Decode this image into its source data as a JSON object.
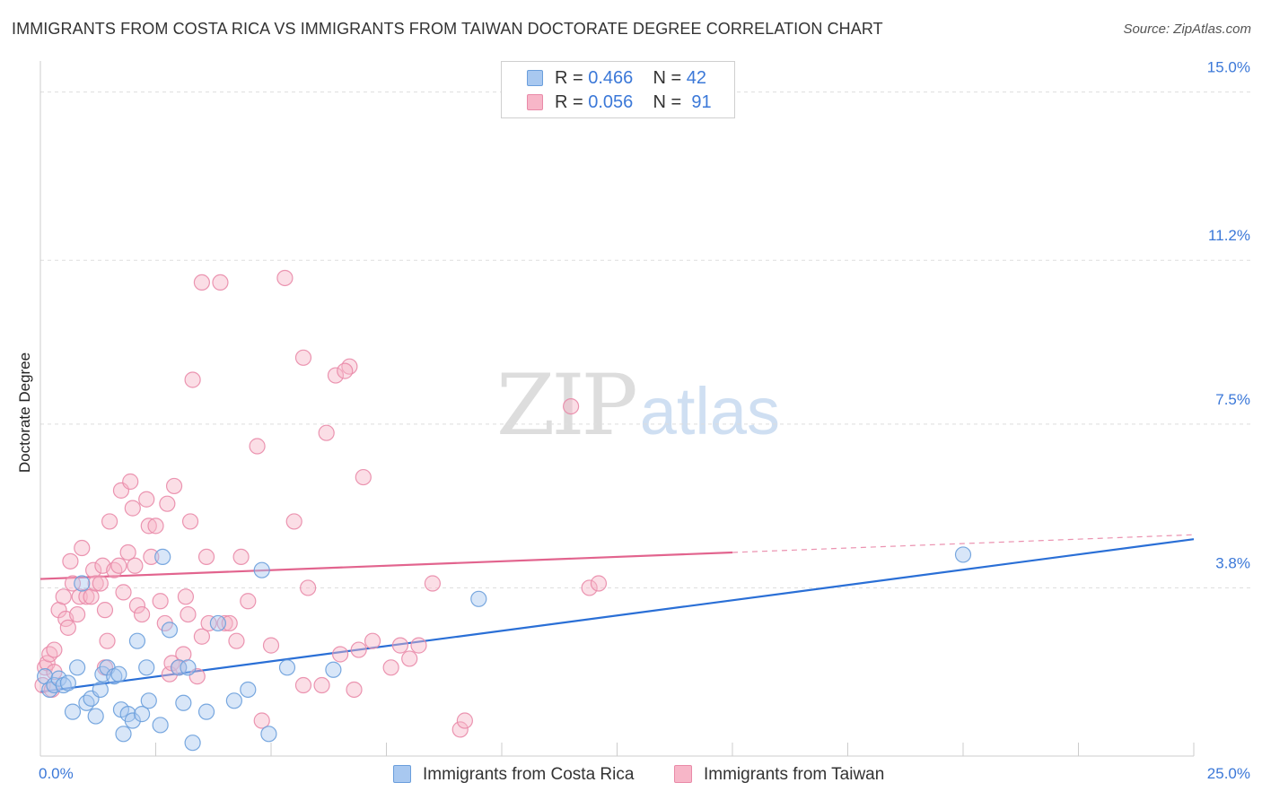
{
  "title": "IMMIGRANTS FROM COSTA RICA VS IMMIGRANTS FROM TAIWAN DOCTORATE DEGREE CORRELATION CHART",
  "source": "Source: ZipAtlas.com",
  "watermark": {
    "zip": "ZIP",
    "atlas": "atlas"
  },
  "legend": {
    "rows": [
      {
        "r_label": "R =",
        "r_value": "0.466",
        "n_label": "N =",
        "n_value": "42",
        "color": "#a8c8f0"
      },
      {
        "r_label": "R =",
        "r_value": "0.056",
        "n_label": "N =",
        "n_value": "91",
        "color": "#f7b6c8"
      }
    ]
  },
  "series_legend": [
    {
      "name": "Immigrants from Costa Rica",
      "color": "#a8c8f0"
    },
    {
      "name": "Immigrants from Taiwan",
      "color": "#f7b6c8"
    }
  ],
  "colors": {
    "costa_rica_fill": "#a8c8f0",
    "costa_rica_stroke": "#6a9edc",
    "costa_rica_line": "#2a6fd6",
    "taiwan_fill": "#f7b6c8",
    "taiwan_stroke": "#e98aa8",
    "taiwan_line": "#e2648e",
    "grid": "#dedede",
    "tick_label": "#3b78d8"
  },
  "chart_data": {
    "type": "scatter",
    "title": "IMMIGRANTS FROM COSTA RICA VS IMMIGRANTS FROM TAIWAN DOCTORATE DEGREE CORRELATION CHART",
    "xlabel": "",
    "ylabel": "Doctorate Degree",
    "xlim": [
      0,
      25
    ],
    "ylim": [
      0,
      15.5
    ],
    "x_tick_labels": [
      "0.0%",
      "25.0%"
    ],
    "y_ticks": [
      3.8,
      7.5,
      11.2,
      15.0
    ],
    "y_tick_labels": [
      "3.8%",
      "7.5%",
      "11.2%",
      "15.0%"
    ],
    "grid": true,
    "series": [
      {
        "name": "Immigrants from Costa Rica",
        "R": 0.466,
        "N": 42,
        "trend": {
          "x": [
            0,
            25
          ],
          "y": [
            1.45,
            4.9
          ],
          "dashed_from": null
        },
        "points": [
          [
            0.1,
            1.8
          ],
          [
            0.2,
            1.5
          ],
          [
            0.3,
            1.6
          ],
          [
            0.4,
            1.75
          ],
          [
            0.5,
            1.6
          ],
          [
            0.6,
            1.65
          ],
          [
            0.7,
            1.0
          ],
          [
            0.8,
            2.0
          ],
          [
            0.9,
            3.9
          ],
          [
            1.0,
            1.2
          ],
          [
            1.1,
            1.3
          ],
          [
            1.2,
            0.9
          ],
          [
            1.3,
            1.5
          ],
          [
            1.35,
            1.85
          ],
          [
            1.45,
            2.0
          ],
          [
            1.6,
            1.8
          ],
          [
            1.7,
            1.85
          ],
          [
            1.75,
            1.05
          ],
          [
            1.8,
            0.5
          ],
          [
            1.9,
            0.95
          ],
          [
            2.0,
            0.8
          ],
          [
            2.1,
            2.6
          ],
          [
            2.2,
            0.95
          ],
          [
            2.3,
            2.0
          ],
          [
            2.35,
            1.25
          ],
          [
            2.6,
            0.7
          ],
          [
            2.65,
            4.5
          ],
          [
            2.8,
            2.85
          ],
          [
            3.0,
            2.0
          ],
          [
            3.1,
            1.2
          ],
          [
            3.2,
            2.0
          ],
          [
            3.3,
            0.3
          ],
          [
            3.6,
            1.0
          ],
          [
            3.85,
            3.0
          ],
          [
            4.2,
            1.25
          ],
          [
            4.5,
            1.5
          ],
          [
            4.8,
            4.2
          ],
          [
            4.95,
            0.5
          ],
          [
            5.35,
            2.0
          ],
          [
            6.35,
            1.95
          ],
          [
            9.5,
            3.55
          ],
          [
            20.0,
            4.55
          ]
        ]
      },
      {
        "name": "Immigrants from Taiwan",
        "R": 0.056,
        "N": 91,
        "trend": {
          "x": [
            0,
            25
          ],
          "y": [
            4.0,
            5.0
          ],
          "dashed_from": 15
        },
        "points": [
          [
            0.05,
            1.6
          ],
          [
            0.1,
            2.0
          ],
          [
            0.15,
            2.1
          ],
          [
            0.2,
            2.3
          ],
          [
            0.25,
            1.5
          ],
          [
            0.3,
            2.4
          ],
          [
            0.4,
            3.3
          ],
          [
            0.5,
            3.6
          ],
          [
            0.55,
            3.1
          ],
          [
            0.6,
            2.9
          ],
          [
            0.65,
            4.4
          ],
          [
            0.7,
            3.9
          ],
          [
            0.8,
            3.2
          ],
          [
            0.85,
            3.6
          ],
          [
            0.9,
            4.7
          ],
          [
            1.0,
            3.6
          ],
          [
            1.1,
            3.6
          ],
          [
            1.15,
            4.2
          ],
          [
            1.2,
            3.9
          ],
          [
            1.3,
            3.9
          ],
          [
            1.35,
            4.3
          ],
          [
            1.4,
            3.3
          ],
          [
            1.45,
            2.6
          ],
          [
            1.5,
            5.3
          ],
          [
            1.6,
            4.2
          ],
          [
            1.7,
            4.3
          ],
          [
            1.75,
            6.0
          ],
          [
            1.8,
            3.7
          ],
          [
            1.9,
            4.6
          ],
          [
            1.95,
            6.2
          ],
          [
            2.0,
            5.6
          ],
          [
            2.05,
            4.3
          ],
          [
            2.1,
            3.4
          ],
          [
            2.2,
            3.2
          ],
          [
            2.3,
            5.8
          ],
          [
            2.35,
            5.2
          ],
          [
            2.4,
            4.5
          ],
          [
            2.5,
            5.2
          ],
          [
            2.6,
            3.5
          ],
          [
            2.7,
            3.0
          ],
          [
            2.75,
            5.7
          ],
          [
            2.8,
            1.85
          ],
          [
            2.85,
            2.1
          ],
          [
            2.9,
            6.1
          ],
          [
            3.0,
            2.0
          ],
          [
            3.1,
            2.3
          ],
          [
            3.15,
            3.6
          ],
          [
            3.2,
            3.2
          ],
          [
            3.25,
            5.3
          ],
          [
            3.3,
            8.5
          ],
          [
            3.4,
            1.8
          ],
          [
            3.5,
            2.7
          ],
          [
            3.5,
            10.7
          ],
          [
            3.6,
            4.5
          ],
          [
            3.65,
            3.0
          ],
          [
            3.9,
            10.7
          ],
          [
            4.0,
            3.0
          ],
          [
            4.1,
            3.0
          ],
          [
            4.25,
            2.6
          ],
          [
            4.35,
            4.5
          ],
          [
            4.5,
            3.5
          ],
          [
            4.8,
            0.8
          ],
          [
            5.0,
            2.5
          ],
          [
            5.3,
            10.8
          ],
          [
            5.5,
            5.3
          ],
          [
            5.7,
            1.6
          ],
          [
            5.8,
            3.8
          ],
          [
            6.1,
            1.6
          ],
          [
            6.2,
            7.3
          ],
          [
            6.4,
            8.6
          ],
          [
            6.5,
            2.3
          ],
          [
            6.7,
            8.8
          ],
          [
            6.8,
            1.5
          ],
          [
            6.9,
            2.4
          ],
          [
            7.0,
            6.3
          ],
          [
            7.2,
            2.6
          ],
          [
            7.6,
            2.0
          ],
          [
            7.8,
            2.5
          ],
          [
            8.0,
            2.2
          ],
          [
            8.2,
            2.5
          ],
          [
            8.5,
            3.9
          ],
          [
            9.1,
            0.6
          ],
          [
            9.2,
            0.8
          ],
          [
            11.5,
            7.9
          ],
          [
            11.9,
            3.8
          ],
          [
            12.1,
            3.9
          ],
          [
            4.7,
            7.0
          ],
          [
            5.7,
            9.0
          ],
          [
            6.6,
            8.7
          ],
          [
            1.4,
            2.0
          ],
          [
            0.3,
            1.9
          ]
        ]
      }
    ]
  }
}
